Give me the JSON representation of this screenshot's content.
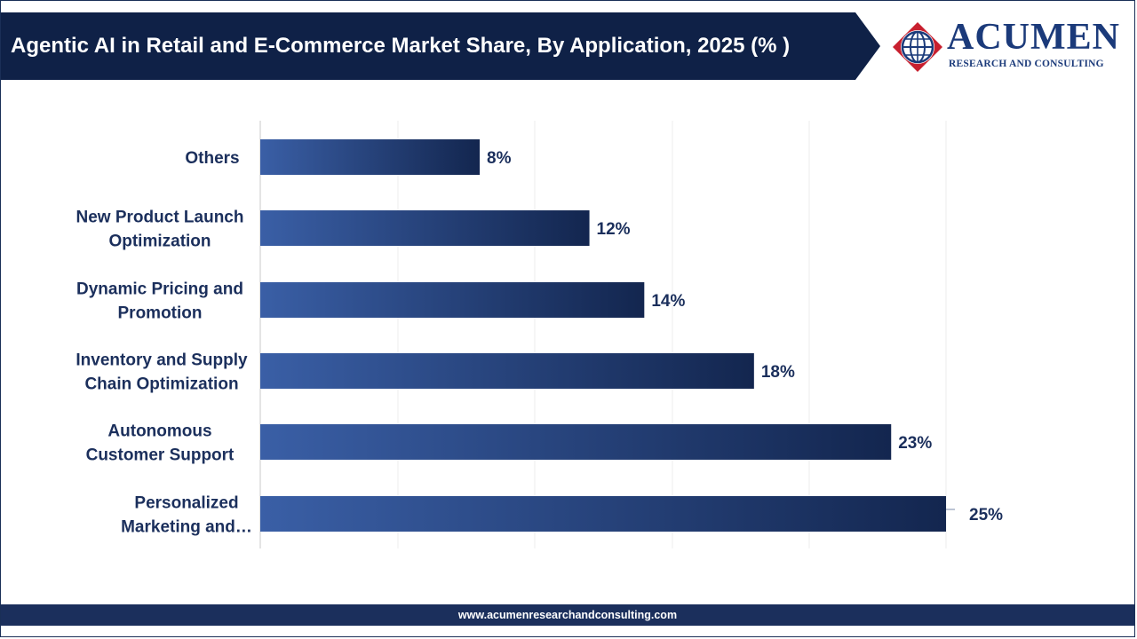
{
  "header": {
    "title": "Agentic AI in Retail and E-Commerce Market Share, By Application, 2025 (% )"
  },
  "logo": {
    "icon": "globe-icon",
    "name": "ACUMEN",
    "tagline": "RESEARCH AND CONSULTING"
  },
  "footer": {
    "url": "www.acumenresearchandconsulting.com"
  },
  "colors": {
    "banner": "#0f2147",
    "bar_start": "#3a5fa6",
    "bar_end": "#13264f",
    "text": "#1b2f5c",
    "logo_red": "#c8202f"
  },
  "chart_data": {
    "type": "bar",
    "orientation": "horizontal",
    "title": "Agentic AI in Retail and E-Commerce Market Share, By Application, 2025 (% )",
    "categories": [
      [
        "Others"
      ],
      [
        "New Product Launch",
        "Optimization"
      ],
      [
        "Dynamic Pricing and",
        "Promotion"
      ],
      [
        "Inventory and Supply",
        "Chain Optimization"
      ],
      [
        "Autonomous",
        "Customer Support"
      ],
      [
        "Personalized",
        "Marketing and…"
      ]
    ],
    "values": [
      8,
      12,
      14,
      18,
      23,
      25
    ],
    "value_labels": [
      "8%",
      "12%",
      "14%",
      "18%",
      "23%",
      "25%"
    ],
    "xlim": [
      0,
      25
    ],
    "grid": true,
    "legend": "none"
  }
}
